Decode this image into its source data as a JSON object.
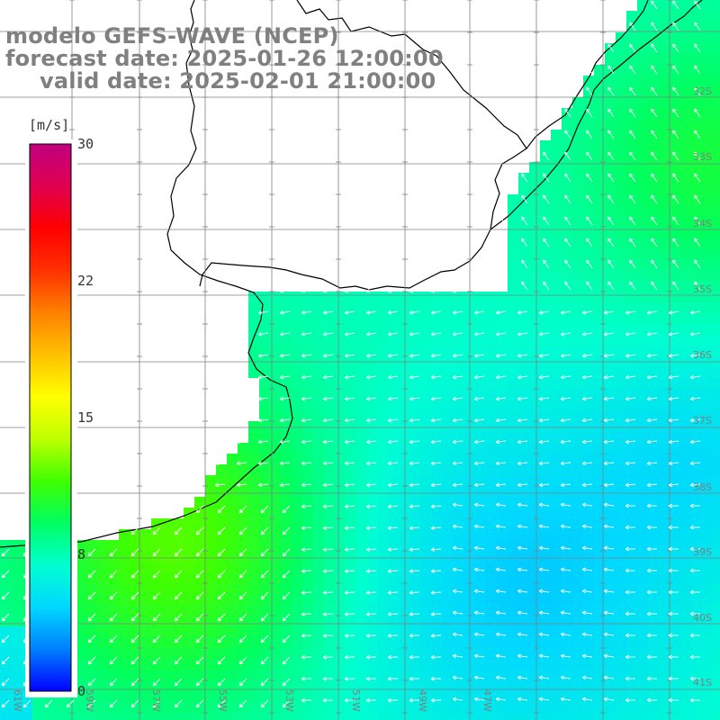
{
  "title": {
    "model": "modelo GEFS-WAVE (NCEP)",
    "forecast": "forecast date: 2025-01-26 12:00:00",
    "valid": "valid date: 2025-02-01 21:00:00"
  },
  "colorbar": {
    "units": "[m/s]",
    "ticks": [
      "30",
      "22",
      "15",
      "8",
      "0"
    ],
    "tick_values": [
      30,
      22,
      15,
      8,
      0
    ],
    "range": [
      0,
      30
    ],
    "colors": [
      "#0000ff",
      "#0080ff",
      "#00d8ff",
      "#00ffd0",
      "#00ff60",
      "#40ff00",
      "#c0ff00",
      "#ffff00",
      "#ffc000",
      "#ff8000",
      "#ff3000",
      "#ff0000",
      "#e00050",
      "#c00080"
    ]
  },
  "grid_labels": {
    "longitudes": [
      "61W",
      "59W",
      "57W",
      "55W",
      "53W",
      "51W",
      "49W",
      "47W"
    ],
    "latitudes": [
      "32S",
      "33S",
      "34S",
      "35S",
      "36S",
      "37S",
      "38S",
      "39S",
      "40S",
      "41S"
    ]
  },
  "land_color": "#ffffff",
  "coast_color": "#000000",
  "arrow_color": "#ffffff",
  "grid_color": "#808080"
}
